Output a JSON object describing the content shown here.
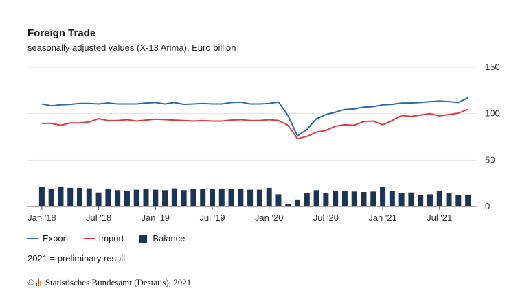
{
  "header": {
    "title": "Foreign Trade",
    "subtitle": "seasonally adjusted values (X-13 Arima), Euro billion"
  },
  "legend": {
    "export": "Export",
    "import": "Import",
    "balance": "Balance"
  },
  "note": "2021 = preliminary result",
  "footer": {
    "copyright_symbol": "©",
    "source": "Statistisches Bundesamt (Destatis), 2021"
  },
  "colors": {
    "export": "#2a6aa6",
    "import": "#e03a3e",
    "balance": "#1c3553",
    "grid": "#e2e2e2",
    "logo_red": "#e23c2f",
    "logo_gold": "#d9a400",
    "logo_dark": "#333333"
  },
  "chart_data": {
    "type": "bar",
    "ylim": [
      0,
      150
    ],
    "yticks": [
      "0",
      "50",
      "100",
      "150"
    ],
    "xtick_labels": [
      "Jan '18",
      "Jul '18",
      "Jan '19",
      "Jul '19",
      "Jan '20",
      "Jul '20",
      "Jan '21",
      "Jul '21"
    ],
    "xtick_indices": [
      0,
      6,
      12,
      18,
      24,
      30,
      36,
      42
    ],
    "categories": [
      "2018-01",
      "2018-02",
      "2018-03",
      "2018-04",
      "2018-05",
      "2018-06",
      "2018-07",
      "2018-08",
      "2018-09",
      "2018-10",
      "2018-11",
      "2018-12",
      "2019-01",
      "2019-02",
      "2019-03",
      "2019-04",
      "2019-05",
      "2019-06",
      "2019-07",
      "2019-08",
      "2019-09",
      "2019-10",
      "2019-11",
      "2019-12",
      "2020-01",
      "2020-02",
      "2020-03",
      "2020-04",
      "2020-05",
      "2020-06",
      "2020-07",
      "2020-08",
      "2020-09",
      "2020-10",
      "2020-11",
      "2020-12",
      "2021-01",
      "2021-02",
      "2021-03",
      "2021-04",
      "2021-05",
      "2021-06",
      "2021-07",
      "2021-08",
      "2021-09",
      "2021-10"
    ],
    "series": [
      {
        "name": "Export",
        "type": "line",
        "values": [
          110.5,
          108.5,
          109.5,
          110,
          111,
          111,
          110.5,
          111.5,
          110.5,
          110.5,
          110.5,
          111.5,
          112,
          110.5,
          112,
          110,
          110.5,
          111,
          110.5,
          110.5,
          112,
          112.5,
          110.5,
          110.5,
          111,
          112.5,
          98,
          76,
          83,
          94.5,
          99,
          101.5,
          104.5,
          105,
          107,
          107.5,
          109.5,
          110,
          111.5,
          111.5,
          112,
          113,
          113.5,
          113,
          112,
          117
        ]
      },
      {
        "name": "Import",
        "type": "line",
        "values": [
          89.5,
          89.5,
          87.5,
          90,
          90,
          91,
          94.5,
          92.5,
          92.5,
          93.5,
          92,
          93,
          94,
          93.5,
          93,
          92.5,
          92,
          92.5,
          92,
          92,
          93,
          93.5,
          92.5,
          92.5,
          93.5,
          92.5,
          87.5,
          73,
          75.5,
          80,
          82,
          86.5,
          88,
          87.5,
          91.5,
          92,
          88,
          92.5,
          98,
          97,
          98.5,
          100,
          97.5,
          99,
          100.5,
          104.5
        ]
      },
      {
        "name": "Balance",
        "type": "bar",
        "values": [
          21,
          19,
          21.5,
          20,
          20,
          19.5,
          15,
          18.5,
          17.5,
          17,
          18,
          19,
          18,
          17.5,
          19.5,
          17.5,
          18.5,
          18.5,
          18.5,
          18.5,
          19,
          19,
          18,
          18,
          20,
          13,
          3,
          7.5,
          14,
          17.5,
          14.5,
          17,
          17,
          16,
          15.5,
          16,
          21,
          17,
          14.5,
          15,
          12.5,
          13,
          17,
          14,
          12.5,
          12.5
        ]
      }
    ]
  }
}
